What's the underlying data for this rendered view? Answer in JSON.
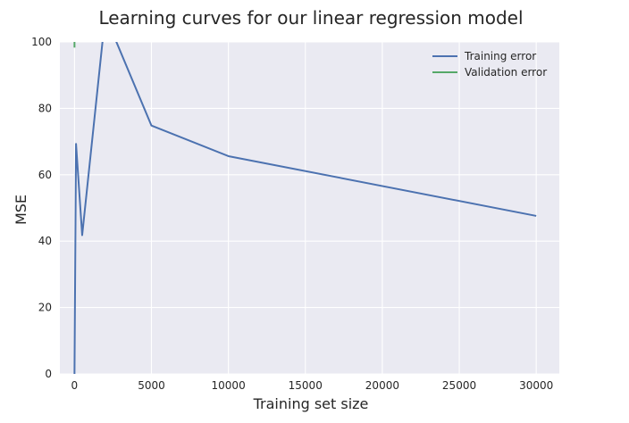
{
  "chart_data": {
    "type": "line",
    "title": "Learning curves for our linear regression model",
    "xlabel": "Training set size",
    "ylabel": "MSE",
    "xlim": [
      -950,
      31500
    ],
    "ylim": [
      0,
      100
    ],
    "xticks": [
      0,
      5000,
      10000,
      15000,
      20000,
      25000,
      30000
    ],
    "yticks": [
      0,
      20,
      40,
      60,
      80,
      100
    ],
    "grid": true,
    "legend_position": "top-right",
    "series": [
      {
        "name": "Training error",
        "color": "#4c72b0",
        "x": [
          1,
          100,
          500,
          2000,
          5000,
          10000,
          30000
        ],
        "y": [
          0,
          69.3,
          41.8,
          108,
          74.8,
          65.6,
          47.6
        ]
      },
      {
        "name": "Validation error",
        "color": "#55a868",
        "x": [
          1,
          1
        ],
        "y": [
          98.3,
          110
        ]
      }
    ]
  }
}
